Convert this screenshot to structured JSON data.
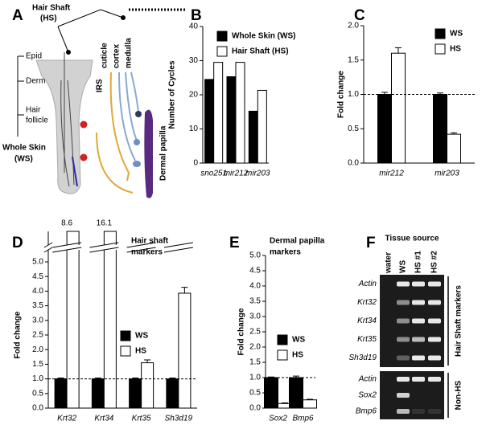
{
  "diagram": {
    "panel_label": "A",
    "hair_shaft_label": [
      "Hair Shaft",
      "(HS)"
    ],
    "epid": "Epid",
    "derm": "Derm",
    "hair_follicle": [
      "Hair",
      "follicle"
    ],
    "whole_skin_label": [
      "Whole Skin",
      "(WS)"
    ],
    "cuticle": "cuticle",
    "cortex": "cortex",
    "medulla": "medulla",
    "irs": "IRS",
    "dermal_papilla": "Dermal papilla"
  },
  "chart_data": [
    {
      "type": "bar",
      "panel_label": "B",
      "ylabel": "Number of Cycles",
      "categories": [
        "sno251",
        "mir212",
        "mir203"
      ],
      "series": [
        {
          "name": "Whole Skin (WS)",
          "color": "#000000",
          "values": [
            24.5,
            25.3,
            15.2
          ]
        },
        {
          "name": "Hair Shaft (HS)",
          "color": "#ffffff",
          "values": [
            29.5,
            29.5,
            21.3
          ]
        }
      ],
      "ylim": [
        0,
        40
      ],
      "yticks": [
        0,
        10,
        20,
        30,
        40
      ],
      "legend": "upper left"
    },
    {
      "type": "bar",
      "panel_label": "C",
      "ylabel": "Fold change",
      "categories": [
        "mir212",
        "mir203"
      ],
      "series": [
        {
          "name": "WS",
          "color": "#000000",
          "values": [
            1.0,
            1.0
          ],
          "errors": [
            0.03,
            0.02
          ]
        },
        {
          "name": "HS",
          "color": "#ffffff",
          "values": [
            1.6,
            0.42
          ],
          "errors": [
            0.08,
            0.02
          ]
        }
      ],
      "ylim": [
        0,
        2
      ],
      "yticks": [
        {
          "value": 0,
          "label": "0.0"
        },
        {
          "value": 0.5,
          "label": "0.5"
        },
        {
          "value": 1,
          "label": "1.0"
        },
        {
          "value": 1.5,
          "label": "1.5"
        },
        {
          "value": 2,
          "label": "2.0"
        }
      ],
      "reference_line": 1,
      "legend": "upper right"
    },
    {
      "type": "bar",
      "panel_label": "D",
      "ylabel": "Fold change",
      "annotation": [
        "Hair shaft",
        "markers"
      ],
      "categories": [
        "Krt32",
        "Krt34",
        "Krt35",
        "Sh3d19"
      ],
      "series": [
        {
          "name": "WS",
          "color": "#000000",
          "values": [
            1.0,
            1.0,
            1.0,
            1.0
          ],
          "errors": [
            0.03,
            0.03,
            0.03,
            0.03
          ]
        },
        {
          "name": "HS",
          "color": "#ffffff",
          "values": [
            8.6,
            16.1,
            1.55,
            3.93
          ],
          "errors": [
            0,
            0,
            0.1,
            0.2
          ],
          "value_labels": [
            "8.6",
            "16.1",
            null,
            null
          ]
        }
      ],
      "ylim": [
        0,
        5
      ],
      "yticks": [
        {
          "value": 0,
          "label": "0.0"
        },
        {
          "value": 0.5,
          "label": "0.5"
        },
        {
          "value": 1,
          "label": "1.0"
        },
        {
          "value": 1.5,
          "label": "1.5"
        },
        {
          "value": 2,
          "label": "2.0"
        },
        {
          "value": 2.5,
          "label": "2.5"
        },
        {
          "value": 3,
          "label": "3.0"
        },
        {
          "value": 3.5,
          "label": "3.5"
        },
        {
          "value": 4,
          "label": "4.0"
        },
        {
          "value": 4.5,
          "label": "4.5"
        },
        {
          "value": 5,
          "label": "5.0"
        }
      ],
      "axis_break": true,
      "reference_line": 1,
      "legend": "center right"
    },
    {
      "type": "bar",
      "panel_label": "E",
      "ylabel": "Fold change",
      "annotation": [
        "Dermal papilla",
        "markers"
      ],
      "categories": [
        "Sox2",
        "Bmp6"
      ],
      "series": [
        {
          "name": "WS",
          "color": "#000000",
          "values": [
            1.0,
            1.0
          ],
          "errors": [
            0.02,
            0.05
          ]
        },
        {
          "name": "HS",
          "color": "#ffffff",
          "values": [
            0.15,
            0.27
          ],
          "errors": [
            0.02,
            0.02
          ]
        }
      ],
      "ylim": [
        0,
        5
      ],
      "yticks": [
        {
          "value": 0,
          "label": "0.0"
        },
        {
          "value": 0.5,
          "label": "0.5"
        },
        {
          "value": 1,
          "label": "1.0"
        },
        {
          "value": 1.5,
          "label": "1.5"
        },
        {
          "value": 2,
          "label": "2.0"
        },
        {
          "value": 2.5,
          "label": "2.5"
        },
        {
          "value": 3,
          "label": "3.0"
        },
        {
          "value": 3.5,
          "label": "3.5"
        },
        {
          "value": 4,
          "label": "4.0"
        },
        {
          "value": 4.5,
          "label": "4.5"
        },
        {
          "value": 5,
          "label": "5.0"
        }
      ],
      "reference_line": 1,
      "legend": "center right"
    }
  ],
  "gel": {
    "panel_label": "F",
    "title": "Tissue source",
    "lanes": [
      "water",
      "WS",
      "HS #1",
      "HS #2"
    ],
    "groups": [
      {
        "name": "Hair Shaft markers",
        "rows": [
          "Actin",
          "Krt32",
          "Krt34",
          "Krt35",
          "Sh3d19"
        ]
      },
      {
        "name": "Non-HS",
        "rows": [
          "Actin",
          "Sox2",
          "Bmp6"
        ]
      }
    ]
  }
}
